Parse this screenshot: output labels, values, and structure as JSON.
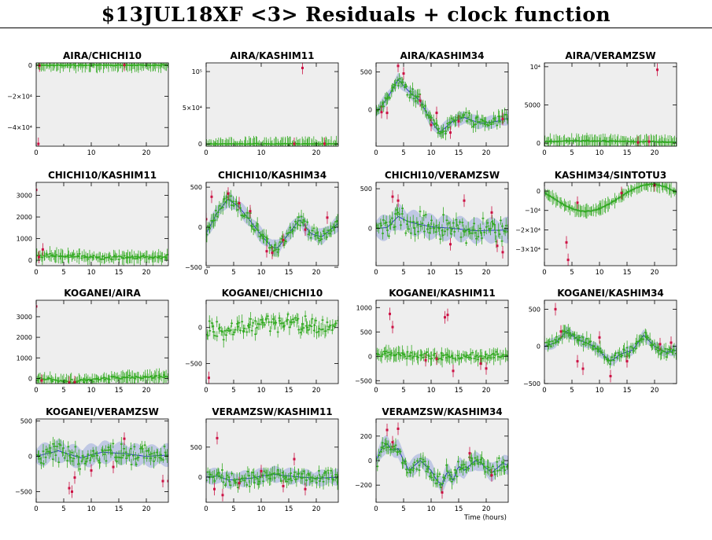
{
  "page": {
    "title": "$13JUL18XF <3> Residuals + clock function",
    "xlabel": "Time (hours)"
  },
  "colors": {
    "panel_bg": "#eeeeee",
    "points": "#33aa22",
    "outliers": "#cc1144",
    "model_line": "#2233bb",
    "model_band": "#c0c8e4"
  },
  "chart_data": [
    {
      "type": "scatter",
      "title": "AIRA/CHICHI10",
      "xlim": [
        0,
        24
      ],
      "ylim": [
        -52000,
        1500
      ],
      "xticks": [
        0,
        10,
        20
      ],
      "xtick_labels": [
        "0",
        "10",
        "20"
      ],
      "yticks": [
        0,
        -20000,
        -40000
      ],
      "ytick_labels": [
        "0",
        "−2×10⁴",
        "−4×10⁴"
      ],
      "xticks_minor": [
        5,
        15
      ],
      "model": false,
      "base": 0,
      "wave": [],
      "noise": 300,
      "outliers": [
        [
          0.4,
          -50500
        ],
        [
          0.6,
          -200
        ],
        [
          16,
          200
        ]
      ]
    },
    {
      "type": "scatter",
      "title": "AIRA/KASHIM11",
      "xlim": [
        0,
        24
      ],
      "ylim": [
        -3000,
        112000
      ],
      "xticks": [
        0,
        10,
        20
      ],
      "xtick_labels": [
        "0",
        "10",
        "20"
      ],
      "yticks": [
        0,
        50000,
        100000
      ],
      "ytick_labels": [
        "0",
        "5×10⁴",
        "10⁵"
      ],
      "xticks_minor": [
        5,
        15
      ],
      "model": false,
      "base": 200,
      "wave": [],
      "noise": 500,
      "outliers": [
        [
          17.5,
          105000
        ],
        [
          16,
          300
        ],
        [
          21.5,
          400
        ]
      ]
    },
    {
      "type": "scatter",
      "title": "AIRA/KASHIM34",
      "xlim": [
        0,
        24
      ],
      "ylim": [
        -480,
        620
      ],
      "xticks": [
        0,
        5,
        10,
        15,
        20
      ],
      "xtick_labels": [
        "0",
        "5",
        "10",
        "15",
        "20"
      ],
      "yticks": [
        500,
        0
      ],
      "ytick_labels": [
        "500",
        "0"
      ],
      "model": true,
      "base": 0,
      "wave": [
        [
          0,
          -40
        ],
        [
          2,
          150
        ],
        [
          4,
          400
        ],
        [
          6,
          240
        ],
        [
          8,
          120
        ],
        [
          10,
          -150
        ],
        [
          11.5,
          -300
        ],
        [
          14,
          -150
        ],
        [
          16,
          -100
        ],
        [
          19,
          -180
        ],
        [
          22,
          -150
        ],
        [
          24,
          -110
        ]
      ],
      "noise": 70,
      "outliers": [
        [
          1,
          -30
        ],
        [
          2,
          -40
        ],
        [
          4,
          580
        ],
        [
          5,
          480
        ],
        [
          8,
          120
        ],
        [
          10,
          -200
        ],
        [
          11,
          -40
        ],
        [
          13.5,
          -300
        ],
        [
          15,
          -150
        ],
        [
          23,
          -120
        ]
      ]
    },
    {
      "type": "scatter",
      "title": "AIRA/VERAMZSW",
      "xlim": [
        0,
        24
      ],
      "ylim": [
        -400,
        10500
      ],
      "xticks": [
        0,
        5,
        10,
        15,
        20
      ],
      "xtick_labels": [
        "0",
        "5",
        "10",
        "15",
        "20"
      ],
      "yticks": [
        10000,
        5000,
        0
      ],
      "ytick_labels": [
        "10⁴",
        "5000",
        "0"
      ],
      "model": true,
      "base": 100,
      "wave": [
        [
          0,
          100
        ],
        [
          5,
          200
        ],
        [
          12,
          150
        ],
        [
          24,
          50
        ]
      ],
      "noise": 80,
      "outliers": [
        [
          20.5,
          9600
        ],
        [
          17,
          100
        ],
        [
          19,
          200
        ]
      ]
    },
    {
      "type": "scatter",
      "title": "CHICHI10/KASHIM11",
      "xlim": [
        0,
        24
      ],
      "ylim": [
        -250,
        3600
      ],
      "xticks": [
        0,
        5,
        10,
        15,
        20
      ],
      "xtick_labels": [
        "0",
        "5",
        "10",
        "15",
        "20"
      ],
      "yticks": [
        3000,
        2000,
        1000,
        0
      ],
      "ytick_labels": [
        "3000",
        "2000",
        "1000",
        "0"
      ],
      "model": false,
      "base": 100,
      "wave": [
        [
          0,
          100
        ],
        [
          6,
          120
        ],
        [
          12,
          20
        ],
        [
          18,
          40
        ],
        [
          24,
          60
        ]
      ],
      "noise": 90,
      "outliers": [
        [
          0,
          3250
        ],
        [
          1.2,
          500
        ],
        [
          0.5,
          150
        ]
      ]
    },
    {
      "type": "scatter",
      "title": "CHICHI10/KASHIM34",
      "xlim": [
        0,
        24
      ],
      "ylim": [
        -480,
        560
      ],
      "xticks": [
        0,
        5,
        10,
        15,
        20
      ],
      "xtick_labels": [
        "0",
        "5",
        "10",
        "15",
        "20"
      ],
      "yticks": [
        500,
        0,
        -500
      ],
      "ytick_labels": [
        "500",
        "0",
        "−500"
      ],
      "model": true,
      "base": 0,
      "wave": [
        [
          0,
          -80
        ],
        [
          2,
          180
        ],
        [
          4,
          350
        ],
        [
          6,
          250
        ],
        [
          8,
          80
        ],
        [
          10,
          -100
        ],
        [
          12,
          -250
        ],
        [
          13,
          -260
        ],
        [
          15,
          -80
        ],
        [
          17,
          100
        ],
        [
          19,
          -80
        ],
        [
          21,
          -120
        ],
        [
          24,
          50
        ]
      ],
      "noise": 80,
      "outliers": [
        [
          0,
          100
        ],
        [
          1,
          380
        ],
        [
          4,
          420
        ],
        [
          6,
          300
        ],
        [
          8,
          200
        ],
        [
          11,
          -300
        ],
        [
          12,
          -320
        ],
        [
          14,
          -160
        ],
        [
          18,
          -30
        ],
        [
          22,
          120
        ]
      ]
    },
    {
      "type": "scatter",
      "title": "CHICHI10/VERAMZSW",
      "xlim": [
        0,
        24
      ],
      "ylim": [
        -470,
        580
      ],
      "xticks": [
        0,
        5,
        10,
        15,
        20
      ],
      "xtick_labels": [
        "0",
        "5",
        "10",
        "15",
        "20"
      ],
      "yticks": [
        500,
        0
      ],
      "ytick_labels": [
        "500",
        "0"
      ],
      "model": true,
      "base": 0,
      "wave": [
        [
          0,
          0
        ],
        [
          2,
          10
        ],
        [
          4,
          150
        ],
        [
          6,
          80
        ],
        [
          10,
          20
        ],
        [
          14,
          0
        ],
        [
          18,
          -30
        ],
        [
          24,
          -20
        ]
      ],
      "noise": 130,
      "outliers": [
        [
          3,
          400
        ],
        [
          4,
          350
        ],
        [
          16,
          350
        ],
        [
          21,
          200
        ],
        [
          22,
          -220
        ],
        [
          23,
          -300
        ],
        [
          13.5,
          -200
        ]
      ]
    },
    {
      "type": "scatter",
      "title": "KASHIM34/SINTOTU3",
      "xlim": [
        0,
        24
      ],
      "ylim": [
        -38500,
        4500
      ],
      "xticks": [
        0,
        5,
        10,
        15,
        20
      ],
      "xtick_labels": [
        "0",
        "5",
        "10",
        "15",
        "20"
      ],
      "yticks": [
        0,
        -10000,
        -20000,
        -30000
      ],
      "ytick_labels": [
        "0",
        "−10⁴",
        "−2×10⁴",
        "−3×10⁴"
      ],
      "model": true,
      "base": 0,
      "wave": [],
      "sine": {
        "amp": 7000,
        "center": -3500,
        "period": 24,
        "phase": 13.5
      },
      "noise": 250,
      "outliers": [
        [
          4,
          -26500
        ],
        [
          4.3,
          -35500
        ],
        [
          6,
          -6000
        ],
        [
          14,
          -1000
        ],
        [
          20,
          3000
        ]
      ]
    },
    {
      "type": "scatter",
      "title": "KOGANEI/AIRA",
      "xlim": [
        0,
        24
      ],
      "ylim": [
        -250,
        3800
      ],
      "xticks": [
        0,
        5,
        10,
        15,
        20
      ],
      "xtick_labels": [
        "0",
        "5",
        "10",
        "15",
        "20"
      ],
      "yticks": [
        3000,
        2000,
        1000,
        0
      ],
      "ytick_labels": [
        "3000",
        "2000",
        "1000",
        "0"
      ],
      "model": false,
      "base": 0,
      "wave": [
        [
          0,
          0
        ],
        [
          3,
          -80
        ],
        [
          6,
          -150
        ],
        [
          10,
          -60
        ],
        [
          14,
          20
        ],
        [
          18,
          60
        ],
        [
          24,
          80
        ]
      ],
      "noise": 80,
      "outliers": [
        [
          0,
          3500
        ],
        [
          1,
          -100
        ],
        [
          6,
          -200
        ],
        [
          7,
          -180
        ]
      ]
    },
    {
      "type": "scatter",
      "title": "KOGANEI/CHICHI10",
      "xlim": [
        0,
        24
      ],
      "ylim": [
        -780,
        380
      ],
      "xticks": [
        0,
        5,
        10,
        15,
        20
      ],
      "xtick_labels": [
        "0",
        "5",
        "10",
        "15",
        "20"
      ],
      "yticks": [
        0,
        -500
      ],
      "ytick_labels": [
        "0",
        "−500"
      ],
      "model": false,
      "base": 0,
      "wave": [
        [
          0,
          -50
        ],
        [
          6,
          -30
        ],
        [
          12,
          80
        ],
        [
          18,
          50
        ],
        [
          24,
          40
        ]
      ],
      "noise": 110,
      "outliers": [
        [
          0.5,
          -700
        ]
      ]
    },
    {
      "type": "scatter",
      "title": "KOGANEI/KASHIM11",
      "xlim": [
        0,
        24
      ],
      "ylim": [
        -560,
        1150
      ],
      "xticks": [
        0,
        5,
        10,
        15,
        20
      ],
      "xtick_labels": [
        "0",
        "5",
        "10",
        "15",
        "20"
      ],
      "yticks": [
        1000,
        500,
        0,
        -500
      ],
      "ytick_labels": [
        "1000",
        "500",
        "0",
        "−500"
      ],
      "model": false,
      "base": 0,
      "wave": [
        [
          0,
          40
        ],
        [
          8,
          20
        ],
        [
          16,
          -20
        ],
        [
          24,
          20
        ]
      ],
      "noise": 70,
      "outliers": [
        [
          2.5,
          870
        ],
        [
          3,
          600
        ],
        [
          12.5,
          800
        ],
        [
          13,
          850
        ],
        [
          9,
          -80
        ],
        [
          14,
          -300
        ],
        [
          20,
          -250
        ],
        [
          19,
          -150
        ],
        [
          11,
          -50
        ]
      ]
    },
    {
      "type": "scatter",
      "title": "KOGANEI/KASHIM34",
      "xlim": [
        0,
        24
      ],
      "ylim": [
        -500,
        620
      ],
      "xticks": [
        0,
        5,
        10,
        15,
        20
      ],
      "xtick_labels": [
        "0",
        "5",
        "10",
        "15",
        "20"
      ],
      "yticks": [
        500,
        0,
        -500
      ],
      "ytick_labels": [
        "500",
        "0",
        "−500"
      ],
      "model": true,
      "base": 0,
      "wave": [
        [
          0,
          0
        ],
        [
          2,
          50
        ],
        [
          4,
          200
        ],
        [
          6,
          100
        ],
        [
          9,
          0
        ],
        [
          12,
          -200
        ],
        [
          14,
          -100
        ],
        [
          16,
          -50
        ],
        [
          18,
          150
        ],
        [
          20,
          0
        ],
        [
          22,
          -80
        ],
        [
          24,
          -50
        ]
      ],
      "noise": 60,
      "outliers": [
        [
          2,
          500
        ],
        [
          3,
          200
        ],
        [
          6,
          -200
        ],
        [
          7,
          -300
        ],
        [
          10,
          120
        ],
        [
          12,
          -400
        ],
        [
          15,
          -200
        ],
        [
          21,
          30
        ],
        [
          23,
          50
        ]
      ]
    },
    {
      "type": "scatter",
      "title": "KOGANEI/VERAMZSW",
      "xlim": [
        0,
        24
      ],
      "ylim": [
        -650,
        530
      ],
      "xticks": [
        0,
        5,
        10,
        15,
        20
      ],
      "xtick_labels": [
        "0",
        "5",
        "10",
        "15",
        "20"
      ],
      "yticks": [
        500,
        0,
        -500
      ],
      "ytick_labels": [
        "500",
        "0",
        "−500"
      ],
      "model": true,
      "base": 0,
      "wave": [
        [
          0,
          0
        ],
        [
          4,
          80
        ],
        [
          8,
          -20
        ],
        [
          12,
          60
        ],
        [
          16,
          40
        ],
        [
          20,
          0
        ],
        [
          24,
          20
        ]
      ],
      "noise": 130,
      "outliers": [
        [
          6,
          -450
        ],
        [
          6.5,
          -500
        ],
        [
          7,
          -300
        ],
        [
          10,
          -200
        ],
        [
          14,
          -150
        ],
        [
          16,
          250
        ],
        [
          23,
          -350
        ],
        [
          24,
          -350
        ]
      ]
    },
    {
      "type": "scatter",
      "title": "VERAMZSW/KASHIM11",
      "xlim": [
        0,
        24
      ],
      "ylim": [
        -420,
        970
      ],
      "xticks": [
        0,
        5,
        10,
        15,
        20
      ],
      "xtick_labels": [
        "0",
        "5",
        "10",
        "15",
        "20"
      ],
      "yticks": [
        500,
        0
      ],
      "ytick_labels": [
        "500",
        "0"
      ],
      "model": true,
      "base": 0,
      "wave": [
        [
          0,
          0
        ],
        [
          2,
          20
        ],
        [
          4,
          -50
        ],
        [
          8,
          -20
        ],
        [
          12,
          50
        ],
        [
          16,
          10
        ],
        [
          20,
          -20
        ],
        [
          24,
          0
        ]
      ],
      "noise": 110,
      "outliers": [
        [
          2,
          650
        ],
        [
          1.5,
          -200
        ],
        [
          3,
          -300
        ],
        [
          6,
          -100
        ],
        [
          10,
          100
        ],
        [
          14,
          -150
        ],
        [
          16,
          300
        ],
        [
          18,
          -200
        ]
      ]
    },
    {
      "type": "scatter",
      "title": "VERAMZSW/KASHIM34",
      "xlim": [
        0,
        24
      ],
      "ylim": [
        -340,
        340
      ],
      "xticks": [
        0,
        5,
        10,
        15,
        20
      ],
      "xtick_labels": [
        "0",
        "5",
        "10",
        "15",
        "20"
      ],
      "yticks": [
        200,
        0,
        -200
      ],
      "ytick_labels": [
        "200",
        "0",
        "−200"
      ],
      "model": true,
      "base": 0,
      "wave": [
        [
          0,
          0
        ],
        [
          1,
          100
        ],
        [
          2,
          140
        ],
        [
          3,
          80
        ],
        [
          4,
          100
        ],
        [
          5,
          0
        ],
        [
          6,
          -80
        ],
        [
          7,
          -40
        ],
        [
          8,
          0
        ],
        [
          9,
          -40
        ],
        [
          10,
          -80
        ],
        [
          11,
          -160
        ],
        [
          12,
          -200
        ],
        [
          13,
          -80
        ],
        [
          14,
          -160
        ],
        [
          15,
          -40
        ],
        [
          16,
          -80
        ],
        [
          17,
          -40
        ],
        [
          18,
          0
        ],
        [
          19,
          -20
        ],
        [
          20,
          -60
        ],
        [
          21,
          -100
        ],
        [
          22,
          -60
        ],
        [
          23,
          -20
        ],
        [
          24,
          -40
        ]
      ],
      "noise": 60,
      "outliers": [
        [
          2,
          250
        ],
        [
          3,
          150
        ],
        [
          4,
          260
        ],
        [
          12,
          -260
        ],
        [
          17,
          60
        ],
        [
          21,
          -120
        ]
      ]
    }
  ]
}
